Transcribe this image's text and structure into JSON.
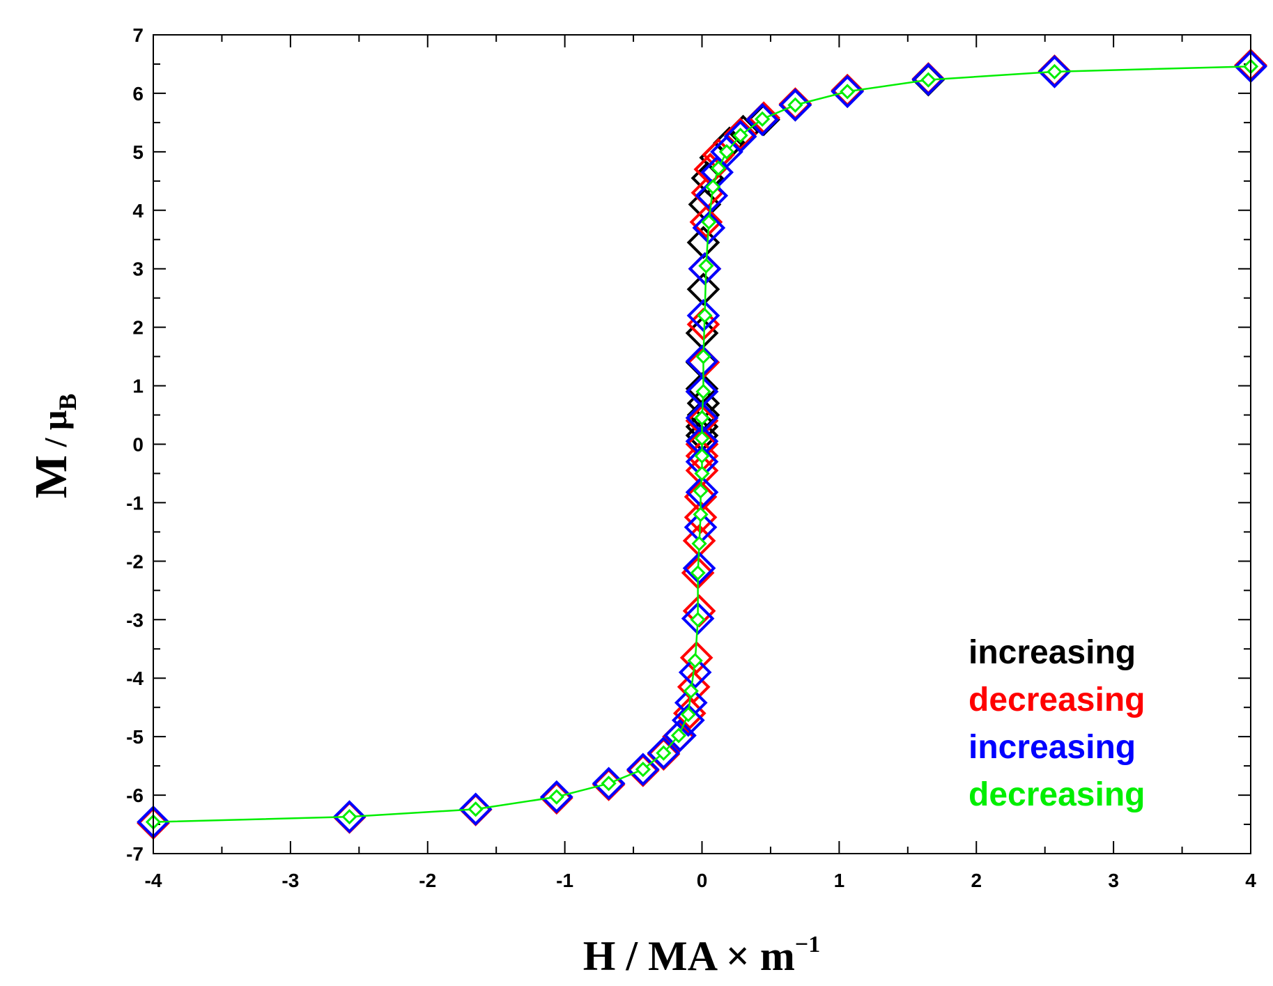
{
  "chart_data": {
    "type": "scatter",
    "title": "",
    "xlabel": {
      "main": "H /  MA × m",
      "superscript": "−1"
    },
    "ylabel": {
      "main": "M",
      "sep": " / ",
      "mu": "μ",
      "subscript": "B"
    },
    "xlim": [
      -4,
      4
    ],
    "ylim": [
      -7,
      7
    ],
    "x_ticks": [
      -4,
      -3,
      -2,
      -1,
      0,
      1,
      2,
      3,
      4
    ],
    "x_tick_labels": [
      "-4",
      "-3",
      "-2",
      "-1",
      "0",
      "1",
      "2",
      "3",
      "4"
    ],
    "y_ticks": [
      -7,
      -6,
      -5,
      -4,
      -3,
      -2,
      -1,
      0,
      1,
      2,
      3,
      4,
      5,
      6,
      7
    ],
    "y_tick_labels": [
      "-7",
      "-6",
      "-5",
      "-4",
      "-3",
      "-2",
      "-1",
      "0",
      "1",
      "2",
      "3",
      "4",
      "5",
      "6",
      "7"
    ],
    "legend_position": "lower-right",
    "series": [
      {
        "name": "increasing",
        "color": "#000000",
        "marker": "diamond-open",
        "points": [
          [
            0.0,
            0.15
          ],
          [
            0.0,
            0.3
          ],
          [
            0.01,
            0.5
          ],
          [
            0.01,
            0.7
          ],
          [
            0.0,
            0.95
          ],
          [
            0.0,
            1.4
          ],
          [
            0.0,
            1.9
          ],
          [
            0.01,
            2.65
          ],
          [
            0.01,
            3.45
          ],
          [
            0.02,
            4.1
          ],
          [
            0.04,
            4.55
          ],
          [
            0.1,
            4.9
          ],
          [
            0.2,
            5.15
          ],
          [
            0.3,
            5.35
          ],
          [
            0.45,
            5.55
          ],
          [
            0.68,
            5.8
          ],
          [
            1.06,
            6.05
          ],
          [
            1.65,
            6.23
          ],
          [
            2.57,
            6.38
          ],
          [
            4.0,
            6.48
          ]
        ]
      },
      {
        "name": "decreasing",
        "color": "#ff0000",
        "marker": "diamond-open",
        "points": [
          [
            4.0,
            6.48
          ],
          [
            2.57,
            6.38
          ],
          [
            1.65,
            6.25
          ],
          [
            1.06,
            6.05
          ],
          [
            0.68,
            5.82
          ],
          [
            0.45,
            5.58
          ],
          [
            0.28,
            5.3
          ],
          [
            0.12,
            4.95
          ],
          [
            0.06,
            4.7
          ],
          [
            0.04,
            4.3
          ],
          [
            0.03,
            3.8
          ],
          [
            0.02,
            3.0
          ],
          [
            0.01,
            2.05
          ],
          [
            0.01,
            1.4
          ],
          [
            0.0,
            0.9
          ],
          [
            0.0,
            0.4
          ],
          [
            0.0,
            0.0
          ],
          [
            0.0,
            -0.2
          ],
          [
            0.0,
            -0.45
          ],
          [
            -0.01,
            -0.9
          ],
          [
            -0.01,
            -1.25
          ],
          [
            -0.02,
            -1.65
          ],
          [
            -0.03,
            -2.2
          ],
          [
            -0.02,
            -2.85
          ],
          [
            -0.04,
            -3.65
          ],
          [
            -0.06,
            -4.15
          ],
          [
            -0.09,
            -4.6
          ],
          [
            -0.17,
            -5.0
          ],
          [
            -0.28,
            -5.3
          ],
          [
            -0.43,
            -5.58
          ],
          [
            -0.68,
            -5.82
          ],
          [
            -1.06,
            -6.05
          ],
          [
            -1.65,
            -6.25
          ],
          [
            -2.57,
            -6.38
          ],
          [
            -4.0,
            -6.48
          ]
        ]
      },
      {
        "name": "increasing",
        "color": "#0000ff",
        "marker": "diamond-open",
        "points": [
          [
            -4.0,
            -6.46
          ],
          [
            -2.57,
            -6.37
          ],
          [
            -1.65,
            -6.24
          ],
          [
            -1.06,
            -6.03
          ],
          [
            -0.68,
            -5.8
          ],
          [
            -0.43,
            -5.56
          ],
          [
            -0.28,
            -5.28
          ],
          [
            -0.16,
            -4.98
          ],
          [
            -0.1,
            -4.72
          ],
          [
            -0.08,
            -4.42
          ],
          [
            -0.05,
            -3.9
          ],
          [
            -0.03,
            -2.98
          ],
          [
            -0.02,
            -2.12
          ],
          [
            -0.01,
            -1.42
          ],
          [
            0.0,
            -0.82
          ],
          [
            0.0,
            -0.3
          ],
          [
            0.0,
            0.05
          ],
          [
            0.0,
            0.45
          ],
          [
            0.0,
            0.9
          ],
          [
            0.0,
            1.42
          ],
          [
            0.01,
            2.2
          ],
          [
            0.02,
            3.0
          ],
          [
            0.05,
            3.7
          ],
          [
            0.07,
            4.25
          ],
          [
            0.11,
            4.65
          ],
          [
            0.18,
            5.0
          ],
          [
            0.28,
            5.26
          ],
          [
            0.44,
            5.55
          ],
          [
            0.68,
            5.8
          ],
          [
            1.06,
            6.03
          ],
          [
            1.65,
            6.24
          ],
          [
            2.57,
            6.37
          ],
          [
            4.0,
            6.46
          ]
        ]
      },
      {
        "name": "decreasing",
        "color": "#00ee00",
        "marker": "diamond-small",
        "line": true,
        "points": [
          [
            4.0,
            6.46
          ],
          [
            2.57,
            6.37
          ],
          [
            1.65,
            6.23
          ],
          [
            1.06,
            6.03
          ],
          [
            0.68,
            5.8
          ],
          [
            0.44,
            5.56
          ],
          [
            0.28,
            5.28
          ],
          [
            0.18,
            5.0
          ],
          [
            0.12,
            4.72
          ],
          [
            0.08,
            4.4
          ],
          [
            0.05,
            3.8
          ],
          [
            0.03,
            3.05
          ],
          [
            0.02,
            2.2
          ],
          [
            0.01,
            1.5
          ],
          [
            0.01,
            0.9
          ],
          [
            0.0,
            0.45
          ],
          [
            0.0,
            0.1
          ],
          [
            0.0,
            -0.2
          ],
          [
            0.0,
            -0.5
          ],
          [
            -0.01,
            -0.8
          ],
          [
            -0.01,
            -1.2
          ],
          [
            -0.02,
            -1.7
          ],
          [
            -0.03,
            -2.2
          ],
          [
            -0.03,
            -3.0
          ],
          [
            -0.05,
            -3.7
          ],
          [
            -0.08,
            -4.22
          ],
          [
            -0.1,
            -4.62
          ],
          [
            -0.17,
            -4.98
          ],
          [
            -0.28,
            -5.28
          ],
          [
            -0.43,
            -5.56
          ],
          [
            -0.68,
            -5.8
          ],
          [
            -1.06,
            -6.03
          ],
          [
            -1.65,
            -6.24
          ],
          [
            -2.57,
            -6.37
          ],
          [
            -4.0,
            -6.46
          ]
        ]
      }
    ]
  }
}
